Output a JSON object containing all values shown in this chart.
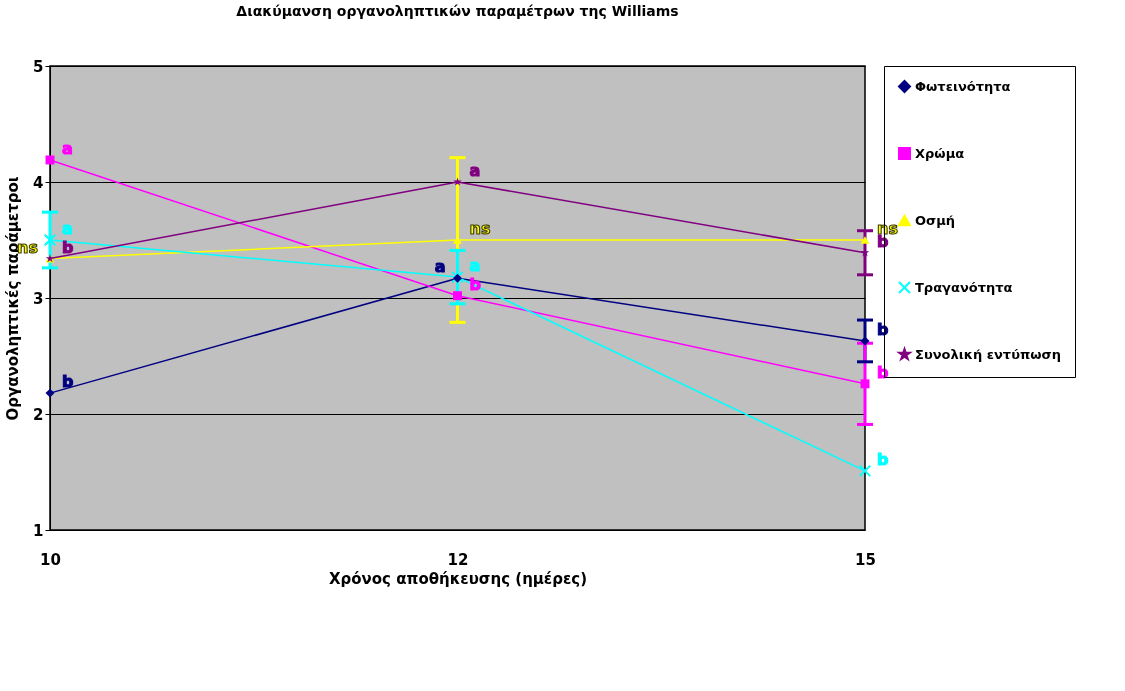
{
  "chart_data": {
    "type": "line",
    "title": "Διακύμανση οργανοληπτικών παραμέτρων της Williams",
    "xlabel": "Χρόνος αποθήκευσης (ημέρες)",
    "ylabel": "Οργανοληπτικές παράμετροι",
    "categories": [
      "10",
      "12",
      "15"
    ],
    "ylim": [
      1,
      5
    ],
    "yticks": [
      1,
      2,
      3,
      4,
      5
    ],
    "grid": "y",
    "legend": "right",
    "line_style": "solid",
    "series": [
      {
        "name": "Φωτεινότητα",
        "color": "#000080",
        "marker": "diamond",
        "values": [
          2.18,
          3.17,
          2.63
        ],
        "errors": [
          null,
          null,
          0.18
        ]
      },
      {
        "name": "Χρώμα",
        "color": "#ff00ff",
        "marker": "square",
        "values": [
          4.19,
          3.02,
          2.26
        ],
        "errors": [
          null,
          null,
          0.35
        ]
      },
      {
        "name": "Οσμή",
        "color": "#ffff00",
        "marker": "triangle",
        "values": [
          3.34,
          3.5,
          3.5
        ],
        "errors": [
          null,
          0.71,
          null
        ]
      },
      {
        "name": "Τραγανότητα",
        "color": "#00ffff",
        "marker": "cross",
        "values": [
          3.5,
          3.18,
          1.51
        ],
        "errors": [
          0.24,
          0.23,
          null
        ]
      },
      {
        "name": "Συνολική εντύπωση",
        "color": "#800080",
        "marker": "star",
        "values": [
          3.34,
          4.0,
          3.39
        ],
        "errors": [
          null,
          null,
          0.19
        ]
      }
    ],
    "annotations": [
      {
        "text": "a",
        "x": "10",
        "y": 4.19
      },
      {
        "text": "a",
        "x": "10",
        "y": 3.5
      },
      {
        "text": "ns",
        "x": "10",
        "y": 3.34
      },
      {
        "text": "b",
        "x": "10",
        "y": 3.34
      },
      {
        "text": "b",
        "x": "10",
        "y": 2.18
      },
      {
        "text": "a",
        "x": "12",
        "y": 4.0
      },
      {
        "text": "ns",
        "x": "12",
        "y": 3.5
      },
      {
        "text": "a",
        "x": "12",
        "y": 3.17
      },
      {
        "text": "a",
        "x": "12",
        "y": 3.18
      },
      {
        "text": "b",
        "x": "12",
        "y": 3.02
      },
      {
        "text": "ns",
        "x": "15",
        "y": 3.5
      },
      {
        "text": "b",
        "x": "15",
        "y": 3.39
      },
      {
        "text": "b",
        "x": "15",
        "y": 2.63
      },
      {
        "text": "b",
        "x": "15",
        "y": 2.26
      },
      {
        "text": "b",
        "x": "15",
        "y": 1.51
      }
    ]
  }
}
